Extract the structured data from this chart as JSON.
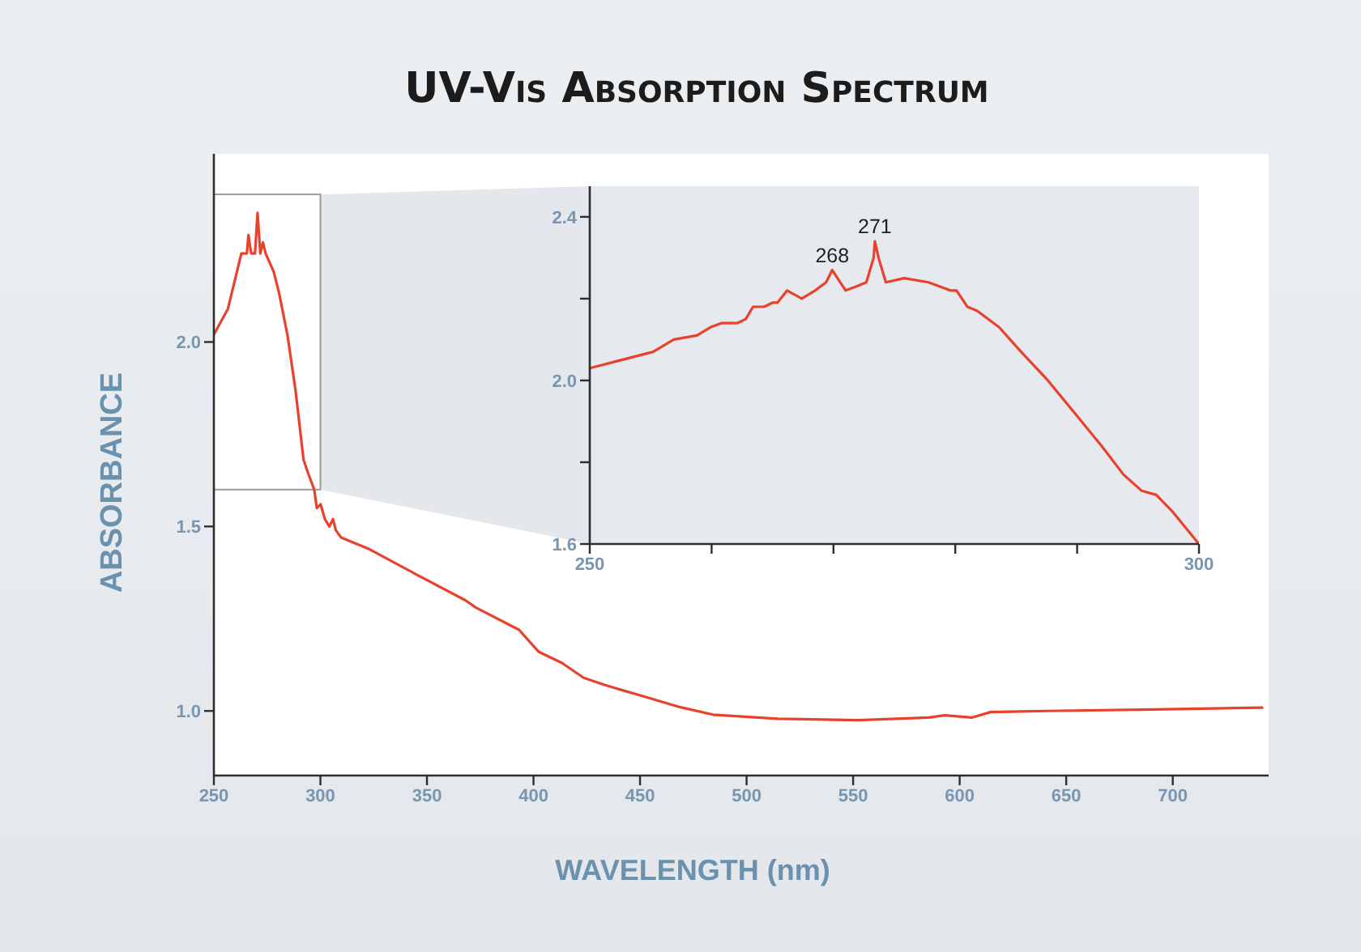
{
  "chart_data": [
    {
      "type": "line",
      "title": "UV-Vis Absorption Spectrum",
      "xlabel": "WAVELENGTH (nm)",
      "ylabel": "ABSORBANCE",
      "x": [
        250,
        256.6,
        262.9,
        265.5,
        266.2,
        267.5,
        269.3,
        270.5,
        271.8,
        273,
        274.3,
        278.1,
        280.7,
        284.5,
        288.3,
        292.1,
        294.5,
        297.1,
        298.3,
        300.1,
        302.1,
        304.2,
        305.9,
        307.2,
        309.7,
        322.4,
        345,
        368,
        373,
        393.2,
        402.5,
        413.4,
        423.5,
        433.6,
        451.4,
        469,
        484.2,
        514.6,
        552.5,
        585.4,
        593,
        605.6,
        614.5,
        641,
        691.6,
        742
      ],
      "series": [
        {
          "color": "#e8412c",
          "values": [
            2.02,
            2.09,
            2.24,
            2.24,
            2.29,
            2.24,
            2.24,
            2.35,
            2.24,
            2.27,
            2.24,
            2.19,
            2.13,
            2.02,
            1.87,
            1.68,
            1.64,
            1.6,
            1.55,
            1.56,
            1.52,
            1.5,
            1.52,
            1.49,
            1.47,
            1.44,
            1.37,
            1.3,
            1.28,
            1.22,
            1.16,
            1.13,
            1.09,
            1.07,
            1.04,
            1.01,
            0.99,
            0.979,
            0.975,
            0.982,
            0.988,
            0.982,
            0.997,
            1.0,
            1.004,
            1.009
          ]
        }
      ],
      "xlim": [
        250,
        745
      ],
      "xticks": [
        250,
        300,
        350,
        400,
        450,
        500,
        550,
        600,
        650,
        700
      ],
      "ylim": [
        0.825,
        2.51
      ],
      "yticks": [
        {
          "value": 1,
          "label": "1.0"
        },
        1.5,
        {
          "value": 2,
          "label": "2.0"
        }
      ],
      "line_style": "solid"
    },
    {
      "type": "line",
      "x": [
        250,
        255.2,
        256.9,
        258.8,
        259.9,
        260.8,
        262.1,
        262.8,
        263.4,
        264.3,
        265,
        265.4,
        266.2,
        267.4,
        268.5,
        269.4,
        269.9,
        271,
        271.9,
        272.7,
        273.3,
        273.4,
        273.7,
        274.3,
        275.8,
        277.8,
        279.6,
        280.1,
        281,
        281.8,
        283.6,
        285.4,
        287.6,
        289.8,
        292,
        293.8,
        295.3,
        296.5,
        297.8,
        300
      ],
      "series": [
        {
          "color": "#e8412c",
          "values": [
            2.03,
            2.07,
            2.1,
            2.11,
            2.13,
            2.14,
            2.14,
            2.15,
            2.18,
            2.18,
            2.19,
            2.19,
            2.22,
            2.2,
            2.22,
            2.24,
            2.27,
            2.22,
            2.23,
            2.24,
            2.3,
            2.34,
            2.3,
            2.24,
            2.25,
            2.24,
            2.22,
            2.22,
            2.18,
            2.17,
            2.13,
            2.07,
            2.0,
            1.92,
            1.84,
            1.77,
            1.73,
            1.72,
            1.68,
            1.6
          ]
        }
      ],
      "xlim": [
        250,
        300
      ],
      "xticks": [
        250,
        {
          "value": 260,
          "label": null
        },
        {
          "value": 270,
          "label": null
        },
        {
          "value": 280,
          "label": null
        },
        {
          "value": 290,
          "label": null
        },
        300
      ],
      "ylim": [
        1.6,
        2.475
      ],
      "yticks": [
        1.6,
        {
          "value": 1.8,
          "label": null
        },
        {
          "value": 2,
          "label": "2.0"
        },
        {
          "value": 2.2,
          "label": null
        },
        2.4
      ],
      "annotations": [
        {
          "text": "268",
          "x": 269.9,
          "y": 2.27
        },
        {
          "text": "271",
          "x": 273.4,
          "y": 2.34
        }
      ],
      "line_style": "solid"
    }
  ]
}
